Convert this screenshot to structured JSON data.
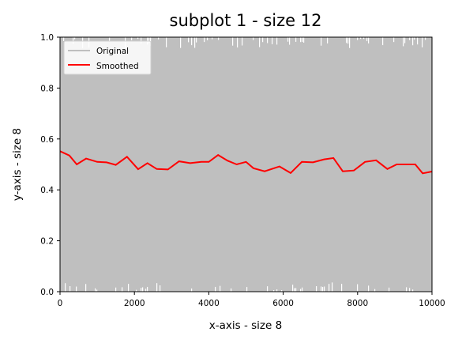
{
  "chart_data": {
    "type": "line",
    "title": "subplot 1 - size 12",
    "xlabel": "x-axis - size 8",
    "ylabel": "y-axis - size 8",
    "xlim": [
      0,
      10000
    ],
    "ylim": [
      0.0,
      1.0
    ],
    "xticks": [
      0,
      2000,
      4000,
      6000,
      8000,
      10000
    ],
    "xtick_labels": [
      "0",
      "2000",
      "4000",
      "6000",
      "8000",
      "10000"
    ],
    "yticks": [
      0.0,
      0.2,
      0.4,
      0.6,
      0.8,
      1.0
    ],
    "ytick_labels": [
      "0.0",
      "0.2",
      "0.4",
      "0.6",
      "0.8",
      "1.0"
    ],
    "grid": false,
    "legend": {
      "position": "top-left",
      "entries": [
        "Original",
        "Smoothed"
      ]
    },
    "series": [
      {
        "name": "Original",
        "color": "#bfbfbf",
        "style": "dense noise",
        "y_min": 0.0,
        "y_max": 1.0
      },
      {
        "name": "Smoothed",
        "color": "#ff0000",
        "x": [
          0,
          250,
          450,
          700,
          1000,
          1250,
          1500,
          1800,
          2100,
          2350,
          2600,
          2900,
          3200,
          3500,
          3800,
          4000,
          4250,
          4500,
          4750,
          5000,
          5200,
          5500,
          5900,
          6200,
          6500,
          6800,
          7100,
          7350,
          7600,
          7900,
          8200,
          8500,
          8800,
          9050,
          9300,
          9550,
          9750,
          10000
        ],
        "y": [
          0.552,
          0.535,
          0.5,
          0.523,
          0.51,
          0.508,
          0.498,
          0.53,
          0.481,
          0.505,
          0.482,
          0.48,
          0.512,
          0.505,
          0.51,
          0.51,
          0.537,
          0.515,
          0.5,
          0.51,
          0.485,
          0.473,
          0.492,
          0.466,
          0.51,
          0.508,
          0.52,
          0.525,
          0.473,
          0.476,
          0.51,
          0.516,
          0.482,
          0.5,
          0.5,
          0.5,
          0.465,
          0.472
        ]
      }
    ]
  }
}
